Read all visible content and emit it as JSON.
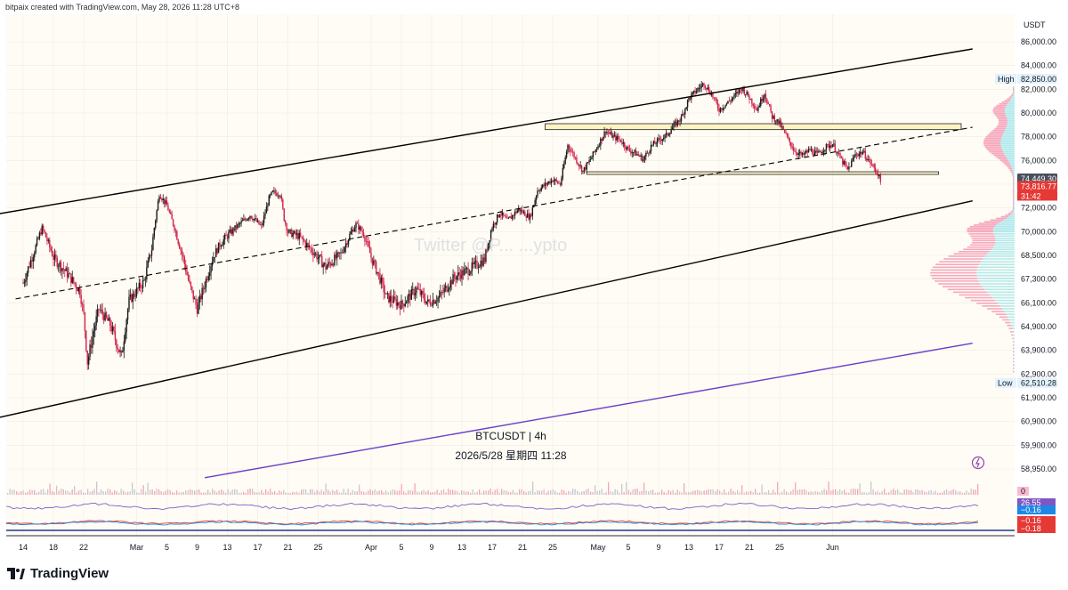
{
  "header": {
    "caption": "bitpaix created with TradingView.com, May 28, 2026 11:28 UTC+8"
  },
  "watermark": "Twitter @P... ...ypto",
  "chart_info": {
    "symbol_line": "BTCUSDT | 4h",
    "datetime_line": "2026/5/28 星期四 11:28"
  },
  "footer": {
    "brand": "TradingView"
  },
  "colors": {
    "background": "#fefcf4",
    "up": "#1a1a1a",
    "down": "#d0224a",
    "channel": "#000000",
    "purple_line": "#6a3fc9",
    "zone_fill": "#fdf3c4",
    "profile_pink": "#f06292",
    "profile_cyan": "#80deea",
    "current_price_bg": "#e53935",
    "last_close_bg": "#4a4f5c"
  },
  "chart_data": {
    "type": "candlestick",
    "title": "BTCUSDT | 4h",
    "currency_label": "USDT",
    "price_ticks": [
      "86,000.00",
      "84,000.00",
      "82,000.00",
      "80,000.00",
      "78,000.00",
      "76,000.00",
      "74,000.00",
      "72,000.00",
      "70,000.00",
      "68,500.00",
      "67,300.00",
      "66,100.00",
      "64,900.00",
      "63,900.00",
      "62,900.00",
      "61,900.00",
      "60,900.00",
      "59,900.00",
      "58,950.00"
    ],
    "time_ticks": [
      "14",
      "18",
      "22",
      "Mar",
      "5",
      "9",
      "13",
      "17",
      "21",
      "25",
      "Apr",
      "5",
      "9",
      "13",
      "17",
      "21",
      "25",
      "May",
      "5",
      "9",
      "13",
      "17",
      "21",
      "25",
      "Jun"
    ],
    "high": {
      "label": "High",
      "value": "82,850.00"
    },
    "low": {
      "label": "Low",
      "value": "62,510.28"
    },
    "last_close_tag": "74,449.30",
    "current_price_tag": "73,816.77",
    "countdown_tag": "31:42",
    "volume_tag": "0",
    "indicator_tags": [
      "26.55",
      "−0.16",
      "−0.16",
      "−0.18"
    ],
    "path_points": [
      [
        14,
        67100
      ],
      [
        15.5,
        68800
      ],
      [
        16.5,
        70300
      ],
      [
        18,
        68400
      ],
      [
        20,
        67500
      ],
      [
        21.5,
        66700
      ],
      [
        22,
        65500
      ],
      [
        22.5,
        63400
      ],
      [
        24,
        65800
      ],
      [
        25.5,
        65000
      ],
      [
        27,
        63600
      ],
      [
        28,
        66200
      ],
      [
        30,
        67200
      ],
      [
        31,
        68900
      ],
      [
        32,
        73200
      ],
      [
        33,
        72200
      ],
      [
        34.5,
        69400
      ],
      [
        36,
        67000
      ],
      [
        37,
        65800
      ],
      [
        39,
        68300
      ],
      [
        40,
        69200
      ],
      [
        42,
        70300
      ],
      [
        44,
        71400
      ],
      [
        45.5,
        70400
      ],
      [
        46.5,
        72800
      ],
      [
        47,
        73300
      ],
      [
        48,
        73200
      ],
      [
        48.5,
        71100
      ],
      [
        49,
        70000
      ],
      [
        50.5,
        69700
      ],
      [
        52,
        68900
      ],
      [
        54,
        67900
      ],
      [
        56,
        68600
      ],
      [
        58,
        70600
      ],
      [
        59,
        69900
      ],
      [
        60,
        68400
      ],
      [
        61,
        67500
      ],
      [
        62,
        66400
      ],
      [
        64,
        66000
      ],
      [
        66,
        66800
      ],
      [
        67.5,
        66100
      ],
      [
        69,
        66400
      ],
      [
        71,
        67400
      ],
      [
        73,
        67800
      ],
      [
        75,
        68300
      ],
      [
        76,
        70400
      ],
      [
        77,
        71600
      ],
      [
        78,
        70900
      ],
      [
        79.5,
        71900
      ],
      [
        81,
        71200
      ],
      [
        82,
        73500
      ],
      [
        84,
        74400
      ],
      [
        85,
        74000
      ],
      [
        86,
        77300
      ],
      [
        87,
        76200
      ],
      [
        88,
        75100
      ],
      [
        89,
        76100
      ],
      [
        90,
        77300
      ],
      [
        91,
        78500
      ],
      [
        92,
        78000
      ],
      [
        93,
        77700
      ],
      [
        94,
        76900
      ],
      [
        95,
        76600
      ],
      [
        96,
        76100
      ],
      [
        97,
        77200
      ],
      [
        98,
        77700
      ],
      [
        99,
        78100
      ],
      [
        100,
        78900
      ],
      [
        101,
        79600
      ],
      [
        102,
        81200
      ],
      [
        103,
        81900
      ],
      [
        104,
        82500
      ],
      [
        105,
        81600
      ],
      [
        106,
        80300
      ],
      [
        107,
        80800
      ],
      [
        108,
        81400
      ],
      [
        109,
        82100
      ],
      [
        110,
        81300
      ],
      [
        111,
        80300
      ],
      [
        112,
        81700
      ],
      [
        113,
        79700
      ],
      [
        114,
        79100
      ],
      [
        115,
        77900
      ],
      [
        116,
        76800
      ],
      [
        117,
        76400
      ],
      [
        118,
        76900
      ],
      [
        119,
        76500
      ],
      [
        120,
        77100
      ],
      [
        121,
        77400
      ],
      [
        122,
        76200
      ],
      [
        123,
        75200
      ],
      [
        124,
        76500
      ],
      [
        125,
        76700
      ],
      [
        126,
        75800
      ],
      [
        127,
        74900
      ],
      [
        127.5,
        73816.77
      ]
    ],
    "channel_upper": [
      [
        7,
        71100
      ],
      [
        139.5,
        85400
      ]
    ],
    "channel_lower": [
      [
        7,
        60800
      ],
      [
        139.5,
        72600
      ]
    ],
    "channel_mid": [
      [
        13,
        66300
      ],
      [
        139.5,
        78800
      ]
    ],
    "purple_trend": [
      [
        38,
        58600
      ],
      [
        139.5,
        64200
      ]
    ],
    "zones": [
      {
        "x0": 83,
        "x1": 138,
        "top": 79100,
        "bottom": 78600
      },
      {
        "x0": 88.5,
        "x1": 135,
        "top": 75050,
        "bottom": 74850
      }
    ],
    "volume_profile_note": "pink/cyan horizontal volume distribution along right edge"
  }
}
